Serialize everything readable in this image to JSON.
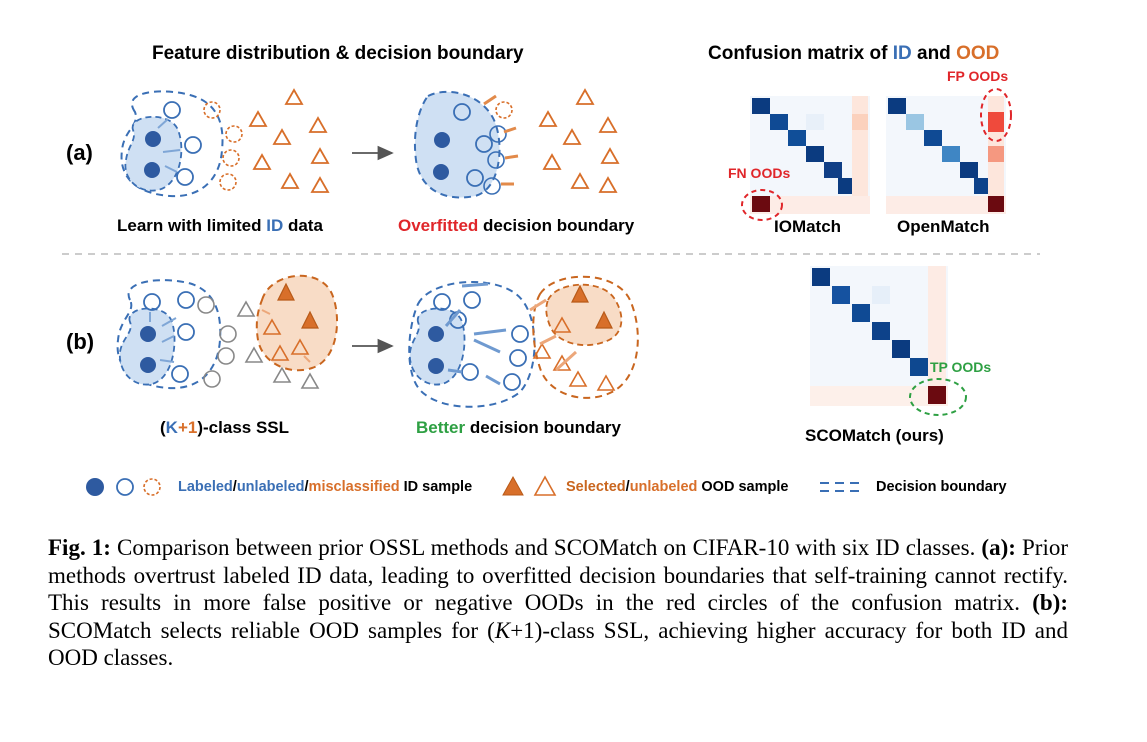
{
  "header": {
    "left_title": "Feature distribution & decision boundary",
    "right_title_pre": "Confusion matrix of ",
    "right_title_id": "ID",
    "right_title_mid": " and ",
    "right_title_ood": "OOD"
  },
  "row_a": {
    "tag": "(a)",
    "left_label_pre": "Learn with limited ",
    "left_label_id": "ID",
    "left_label_post": " data",
    "right_label_hl": "Overfitted",
    "right_label_post": " decision boundary"
  },
  "row_b": {
    "tag": "(b)",
    "left_label_open": "(",
    "left_label_k": "K",
    "left_label_plus": "+",
    "left_label_one": "1",
    "left_label_post": ")-class SSL",
    "right_label_hl": "Better",
    "right_label_post": " decision boundary"
  },
  "confusion": {
    "iomatch": "IOMatch",
    "openmatch": "OpenMatch",
    "scomatch": "SCOMatch (ours)",
    "fp_oods": "FP OODs",
    "fn_oods": "FN OODs",
    "tp_oods": "TP OODs"
  },
  "legend": {
    "id_labeled": "Labeled",
    "slash1": "/",
    "id_unlabeled": "unlabeled",
    "slash2": "/",
    "id_misclassified": "misclassified",
    "id_post": " ID sample",
    "ood_selected": "Selected",
    "slash3": "/",
    "ood_unlabeled": "unlabeled",
    "ood_post": " OOD sample",
    "boundary": "Decision boundary"
  },
  "caption": {
    "fig": "Fig. 1:",
    "t1": " Comparison between prior OSSL methods and SCOMatch on CIFAR-10 with six ID classes. ",
    "a": "(a):",
    "t2": " Prior methods overtrust labeled ID data, leading to overfitted decision boundaries that self-training cannot rectify. This results in more false positive or negative OODs in the red circles of the confusion matrix. ",
    "b": "(b):",
    "t3": " SCOMatch selects reliable OOD samples for (",
    "k": "K",
    "t4": "+1)-class SSL, achieving higher accuracy for both ID and OOD classes."
  },
  "colors": {
    "id_blue": "#3a6fb5",
    "ood_orange": "#d86f2a",
    "highlight_red": "#e0262a",
    "highlight_green": "#2ea043"
  }
}
